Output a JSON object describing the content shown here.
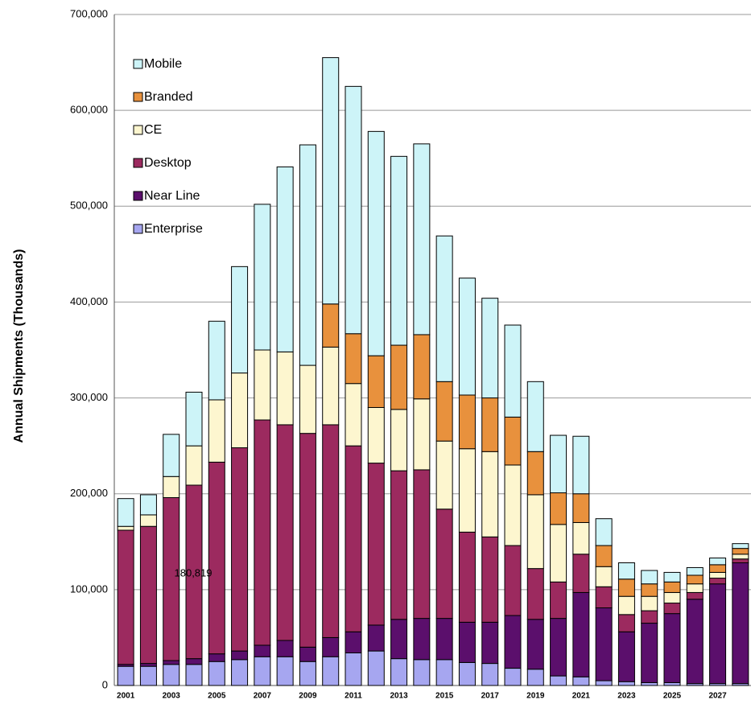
{
  "chart_data": {
    "type": "stacked-bar",
    "y_label": "Annual Shipments (Thousands)",
    "annotation": "180,819",
    "categories": [
      "2001",
      null,
      "2003",
      null,
      "2005",
      null,
      "2007",
      null,
      "2009",
      null,
      "2011",
      null,
      "2013",
      null,
      "2015",
      null,
      "2017",
      null,
      "2019",
      null,
      "2021",
      null,
      "2023",
      null,
      "2025",
      null,
      "2027",
      null
    ],
    "series": [
      {
        "name": "Enterprise",
        "color": "#a6a6f0",
        "values": [
          20000,
          20000,
          22000,
          22000,
          25000,
          27000,
          30000,
          30000,
          25000,
          30000,
          34000,
          36000,
          28000,
          27000,
          27000,
          24000,
          23000,
          18000,
          17000,
          10000,
          9000,
          5000,
          4000,
          3000,
          3000,
          2000,
          2000,
          2000
        ]
      },
      {
        "name": "Near Line",
        "color": "#5b0f6c",
        "values": [
          2000,
          3000,
          4000,
          6000,
          8000,
          9000,
          12000,
          17000,
          15000,
          20000,
          22000,
          27000,
          41000,
          43000,
          43000,
          42000,
          43000,
          55000,
          52000,
          60000,
          88000,
          76000,
          52000,
          62000,
          72000,
          88000,
          104000,
          126000
        ]
      },
      {
        "name": "Desktop",
        "color": "#9c2a5f",
        "values": [
          140000,
          143000,
          170000,
          181000,
          200000,
          212000,
          235000,
          225000,
          223000,
          222000,
          194000,
          169000,
          155000,
          155000,
          114000,
          94000,
          89000,
          73000,
          53000,
          38000,
          40000,
          22000,
          18000,
          13000,
          11000,
          7000,
          6000,
          4000
        ]
      },
      {
        "name": "CE",
        "color": "#fdf6cf",
        "values": [
          4000,
          12000,
          22000,
          41000,
          65000,
          78000,
          73000,
          76000,
          71000,
          81000,
          65000,
          58000,
          64000,
          74000,
          71000,
          87000,
          89000,
          84000,
          77000,
          60000,
          33000,
          21000,
          19000,
          15000,
          11000,
          9000,
          6000,
          5000
        ]
      },
      {
        "name": "Branded",
        "color": "#e8913d",
        "values": [
          0,
          0,
          0,
          0,
          0,
          0,
          0,
          0,
          0,
          45000,
          52000,
          54000,
          67000,
          67000,
          62000,
          56000,
          56000,
          50000,
          45000,
          33000,
          30000,
          22000,
          18000,
          13000,
          11000,
          9000,
          8000,
          6000
        ]
      },
      {
        "name": "Mobile",
        "color": "#cdf4f8",
        "values": [
          29000,
          21000,
          44000,
          56000,
          82000,
          111000,
          152000,
          193000,
          230000,
          257000,
          258000,
          234000,
          197000,
          199000,
          152000,
          122000,
          104000,
          96000,
          73000,
          60000,
          60000,
          28000,
          17000,
          14000,
          10000,
          8000,
          7000,
          5000
        ]
      }
    ],
    "ylim": [
      0,
      700000
    ],
    "yticks": [
      0,
      {
        "value": 100000,
        "label": "100,000"
      },
      {
        "value": 200000,
        "label": "200,000"
      },
      {
        "value": 300000,
        "label": "300,000"
      },
      {
        "value": 400000,
        "label": "400,000"
      },
      {
        "value": 500000,
        "label": "500,000"
      },
      {
        "value": 600000,
        "label": "600,000"
      },
      {
        "value": 700000,
        "label": "700,000"
      }
    ],
    "grid": true
  }
}
